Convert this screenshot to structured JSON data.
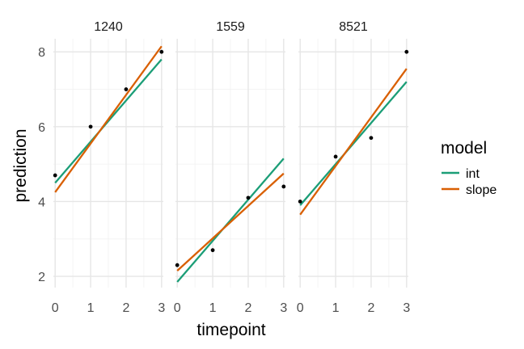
{
  "chart_data": {
    "type": "line",
    "xlabel": "timepoint",
    "ylabel": "prediction",
    "xlim": [
      -0.05,
      3.05
    ],
    "ylim": [
      1.7,
      8.35
    ],
    "x_ticks": [
      0,
      1,
      2,
      3
    ],
    "y_ticks": [
      2,
      4,
      6,
      8
    ],
    "grid": true,
    "legend": {
      "title": "model",
      "position": "right",
      "entries": [
        {
          "label": "int",
          "color": "#1b9e77"
        },
        {
          "label": "slope",
          "color": "#d95f02"
        }
      ]
    },
    "point_color": "#000000",
    "panels": [
      {
        "label": "1240",
        "points": [
          {
            "x": 0,
            "y": 4.7
          },
          {
            "x": 1,
            "y": 6.0
          },
          {
            "x": 2,
            "y": 7.0
          },
          {
            "x": 3,
            "y": 8.0
          }
        ],
        "series": [
          {
            "name": "int",
            "x": [
              0,
              3
            ],
            "y": [
              4.5,
              7.8
            ]
          },
          {
            "name": "slope",
            "x": [
              0,
              3
            ],
            "y": [
              4.25,
              8.15
            ]
          }
        ]
      },
      {
        "label": "1559",
        "points": [
          {
            "x": 0,
            "y": 2.3
          },
          {
            "x": 1,
            "y": 2.7
          },
          {
            "x": 2,
            "y": 4.1
          },
          {
            "x": 3,
            "y": 4.4
          }
        ],
        "series": [
          {
            "name": "int",
            "x": [
              0,
              3
            ],
            "y": [
              1.85,
              5.15
            ]
          },
          {
            "name": "slope",
            "x": [
              0,
              3
            ],
            "y": [
              2.15,
              4.75
            ]
          }
        ]
      },
      {
        "label": "8521",
        "points": [
          {
            "x": 0,
            "y": 4.0
          },
          {
            "x": 1,
            "y": 5.2
          },
          {
            "x": 2,
            "y": 5.7
          },
          {
            "x": 3,
            "y": 8.0
          }
        ],
        "series": [
          {
            "name": "int",
            "x": [
              0,
              3
            ],
            "y": [
              3.9,
              7.2
            ]
          },
          {
            "name": "slope",
            "x": [
              0,
              3
            ],
            "y": [
              3.65,
              7.55
            ]
          }
        ]
      }
    ]
  }
}
